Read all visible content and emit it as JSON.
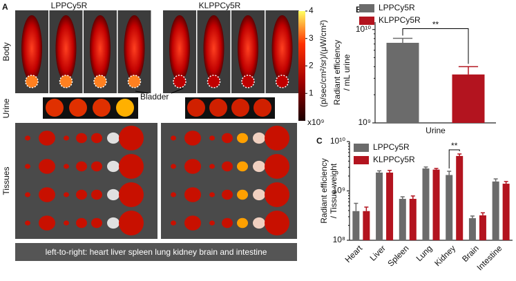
{
  "panel_a": {
    "label": "A",
    "groups": [
      "LPPCy5R",
      "KLPPCy5R"
    ],
    "rows": [
      "Body",
      "Urine",
      "Tissues"
    ],
    "callout": "Bladder",
    "caption": "left-to-right: heart  liver  spleen  lung  kidney  brain and intestine",
    "colorbar": {
      "lim": [
        0,
        4
      ],
      "ticks": [
        1,
        2,
        3,
        4
      ],
      "multiplier": "x10⁹",
      "label": "(p/sec/cm²/sr)/(μW/cm²)"
    }
  },
  "chart_data": [
    {
      "type": "bar",
      "panel": "B",
      "log": true,
      "ylabel": [
        "Radiant efficiency",
        "/ mL urine"
      ],
      "categories": [
        "Urine"
      ],
      "ylim": [
        1000000000,
        12000000000
      ],
      "yticks": [
        {
          "value": 1000000000,
          "label": "10⁹"
        },
        {
          "value": 10000000000,
          "label": "10¹⁰"
        }
      ],
      "annotation": "**",
      "series": [
        {
          "name": "LPPCy5R",
          "color": "#6b6b6b",
          "values": [
            7200000000
          ],
          "errors": [
            850000000
          ]
        },
        {
          "name": "KLPPCy5R",
          "color": "#b3141f",
          "values": [
            3300000000
          ],
          "errors": [
            700000000
          ]
        }
      ]
    },
    {
      "type": "bar",
      "panel": "C",
      "log": true,
      "ylabel": [
        "Radiant efficiency",
        "/ Tissue weight"
      ],
      "categories": [
        "Heart",
        "Liver",
        "Spleen",
        "Lung",
        "Kidney",
        "Brain",
        "Intestine"
      ],
      "ylim": [
        100000000,
        10000000000
      ],
      "yticks": [
        {
          "value": 100000000,
          "label": "10⁸"
        },
        {
          "value": 1000000000,
          "label": "10⁹"
        },
        {
          "value": 10000000000,
          "label": "10¹⁰"
        }
      ],
      "annotation": "**",
      "series": [
        {
          "name": "LPPCy5R",
          "color": "#6b6b6b",
          "values": [
            390000000,
            2350000000,
            690000000,
            2850000000,
            2100000000,
            280000000,
            1550000000
          ],
          "errors": [
            170000000,
            200000000,
            70000000,
            200000000,
            400000000,
            30000000,
            200000000
          ]
        },
        {
          "name": "KLPPCy5R",
          "color": "#b3141f",
          "values": [
            390000000,
            2350000000,
            690000000,
            2700000000,
            5100000000,
            320000000,
            1400000000
          ],
          "errors": [
            80000000,
            250000000,
            100000000,
            150000000,
            500000000,
            40000000,
            150000000
          ]
        }
      ]
    }
  ]
}
